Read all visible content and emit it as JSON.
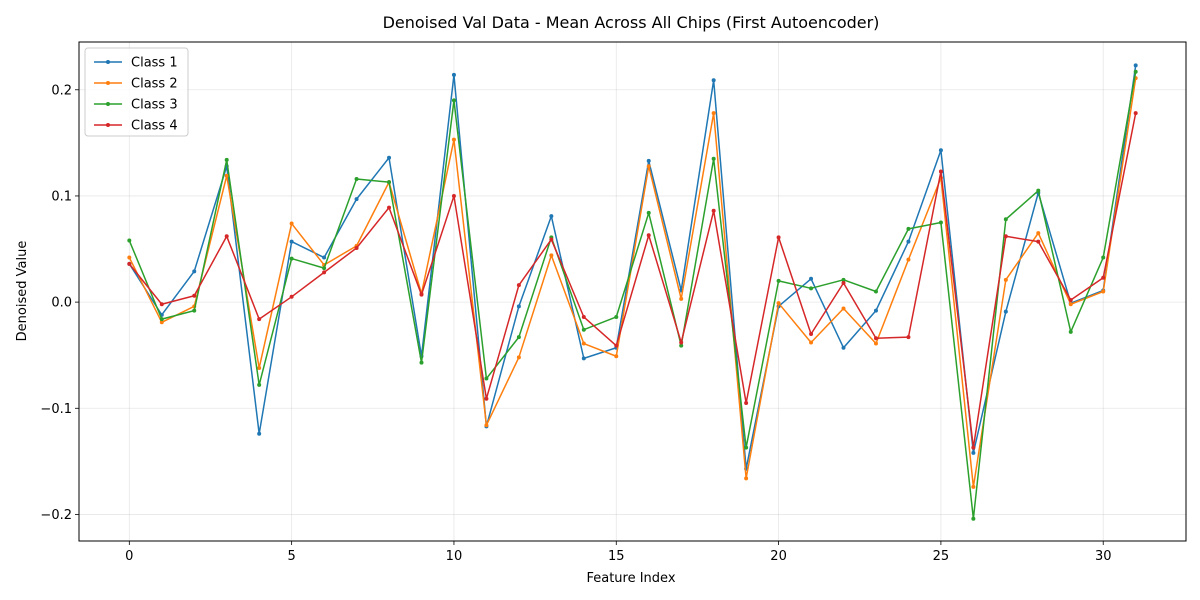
{
  "chart_data": {
    "type": "line",
    "title": "Denoised Val Data - Mean Across All Chips (First Autoencoder)",
    "xlabel": "Feature Index",
    "ylabel": "Denoised Value",
    "xlim": [
      -1.55,
      32.55
    ],
    "ylim": [
      -0.225,
      0.245
    ],
    "xticks": [
      0,
      5,
      10,
      15,
      20,
      25,
      30
    ],
    "yticks": [
      -0.2,
      -0.1,
      0.0,
      0.1,
      0.2
    ],
    "ytick_labels": [
      "−0.2",
      "−0.1",
      "0.0",
      "0.1",
      "0.2"
    ],
    "grid": true,
    "legend_position": "top-left",
    "x": [
      0,
      1,
      2,
      3,
      4,
      5,
      6,
      7,
      8,
      9,
      10,
      11,
      12,
      13,
      14,
      15,
      16,
      17,
      18,
      19,
      20,
      21,
      22,
      23,
      24,
      25,
      26,
      27,
      28,
      29,
      30,
      31
    ],
    "series": [
      {
        "name": "Class 1",
        "color": "#1f77b4",
        "values": [
          0.036,
          -0.012,
          0.029,
          0.128,
          -0.124,
          0.057,
          0.042,
          0.097,
          0.136,
          -0.051,
          0.214,
          -0.117,
          -0.004,
          0.081,
          -0.053,
          -0.043,
          0.133,
          0.011,
          0.209,
          -0.157,
          -0.004,
          0.022,
          -0.043,
          -0.008,
          0.057,
          0.143,
          -0.142,
          -0.009,
          0.103,
          -0.001,
          0.011,
          0.223
        ]
      },
      {
        "name": "Class 2",
        "color": "#ff7f0e",
        "values": [
          0.042,
          -0.019,
          -0.004,
          0.119,
          -0.062,
          0.074,
          0.035,
          0.053,
          0.113,
          0.008,
          0.153,
          -0.116,
          -0.052,
          0.044,
          -0.039,
          -0.051,
          0.128,
          0.003,
          0.178,
          -0.166,
          -0.001,
          -0.038,
          -0.006,
          -0.039,
          0.04,
          0.117,
          -0.174,
          0.021,
          0.065,
          -0.002,
          0.01,
          0.211
        ]
      },
      {
        "name": "Class 3",
        "color": "#2ca02c",
        "values": [
          0.058,
          -0.016,
          -0.008,
          0.134,
          -0.078,
          0.041,
          0.032,
          0.116,
          0.113,
          -0.057,
          0.19,
          -0.072,
          -0.033,
          0.061,
          -0.026,
          -0.014,
          0.084,
          -0.041,
          0.135,
          -0.137,
          0.02,
          0.013,
          0.021,
          0.01,
          0.069,
          0.075,
          -0.204,
          0.078,
          0.105,
          -0.028,
          0.042,
          0.217
        ]
      },
      {
        "name": "Class 4",
        "color": "#d62728",
        "values": [
          0.036,
          -0.002,
          0.006,
          0.062,
          -0.016,
          0.005,
          0.028,
          0.051,
          0.089,
          0.007,
          0.1,
          -0.091,
          0.016,
          0.059,
          -0.014,
          -0.041,
          0.063,
          -0.038,
          0.086,
          -0.095,
          0.061,
          -0.03,
          0.018,
          -0.034,
          -0.033,
          0.123,
          -0.137,
          0.062,
          0.057,
          0.002,
          0.023,
          0.178
        ]
      }
    ]
  }
}
